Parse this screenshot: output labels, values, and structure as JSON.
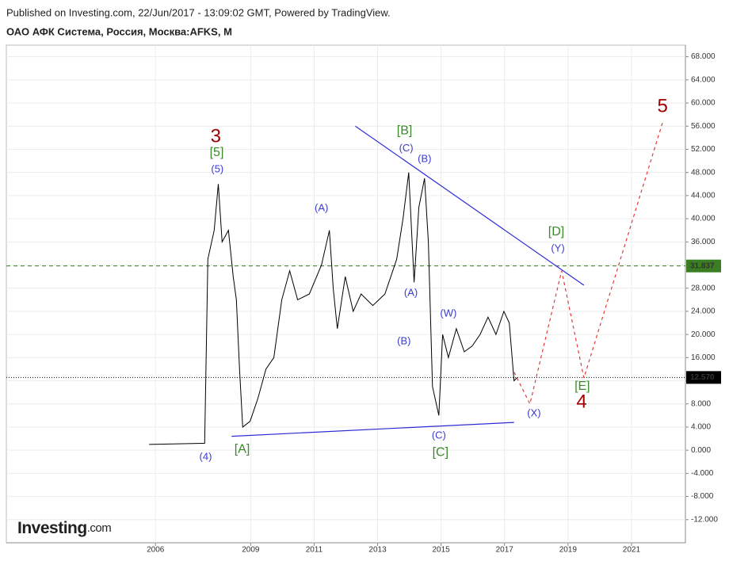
{
  "header": {
    "published": "Published on Investing.com, 22/Jun/2017 - 13:09:02 GMT, Powered by TradingView.",
    "symbol": "ОАО АФК Система, Россия, Москва:AFKS, M"
  },
  "logo": {
    "brand": "Investing",
    "suffix": ".com"
  },
  "chart_data": {
    "type": "line",
    "xlim": [
      2001.3,
      2022.7
    ],
    "ylim": [
      -16,
      70
    ],
    "xticks": [
      2006,
      2009,
      2011,
      2013,
      2015,
      2017,
      2019,
      2021
    ],
    "yticks": [
      {
        "value": -12,
        "label": "-12.000"
      },
      {
        "value": -8,
        "label": "-8.000"
      },
      {
        "value": -4,
        "label": "-4.000"
      },
      {
        "value": 0,
        "label": "0.000"
      },
      {
        "value": 4,
        "label": "4.000"
      },
      {
        "value": 8,
        "label": "8.000"
      },
      {
        "value": 12,
        "label": "12.000"
      },
      {
        "value": 16,
        "label": "16.000"
      },
      {
        "value": 20,
        "label": "20.000"
      },
      {
        "value": 24,
        "label": "24.000"
      },
      {
        "value": 28,
        "label": "28.000"
      },
      {
        "value": 32,
        "label": "32.000"
      },
      {
        "value": 36,
        "label": "36.000"
      },
      {
        "value": 40,
        "label": "40.000"
      },
      {
        "value": 44,
        "label": "44.000"
      },
      {
        "value": 48,
        "label": "48.000"
      },
      {
        "value": 52,
        "label": "52.000"
      },
      {
        "value": 56,
        "label": "56.000"
      },
      {
        "value": 60,
        "label": "60.000"
      },
      {
        "value": 64,
        "label": "64.000"
      },
      {
        "value": 68,
        "label": "68.000"
      }
    ],
    "grid": true,
    "series": [
      {
        "color": "#000000",
        "x": [
          2005.8,
          2007.55,
          2007.65,
          2007.85,
          2007.98,
          2008.1,
          2008.3,
          2008.45,
          2008.55,
          2008.65,
          2008.75,
          2008.98,
          2009.23,
          2009.48,
          2009.73,
          2009.98,
          2010.23,
          2010.48,
          2010.85,
          2011.23,
          2011.48,
          2011.6,
          2011.73,
          2011.98,
          2012.23,
          2012.48,
          2012.85,
          2013.23,
          2013.6,
          2013.8,
          2013.98,
          2014.15,
          2014.3,
          2014.48,
          2014.6,
          2014.73,
          2014.93,
          2015.05,
          2015.23,
          2015.48,
          2015.73,
          2015.98,
          2016.23,
          2016.48,
          2016.73,
          2016.98,
          2017.15,
          2017.3,
          2017.4
        ],
        "values": [
          1.0,
          1.2,
          33,
          38,
          46,
          36,
          38,
          30,
          26,
          14,
          4,
          5,
          9,
          14,
          16,
          26,
          31,
          26,
          27,
          32,
          38,
          28,
          21,
          30,
          24,
          27,
          25,
          27,
          33,
          40,
          48,
          29,
          42,
          47,
          36,
          11,
          6,
          20,
          16,
          21,
          17,
          18,
          20,
          23,
          20,
          24,
          22,
          12,
          12.57
        ]
      }
    ],
    "hlines": [
      {
        "value": 31.837,
        "label": "31.837",
        "color": "#3a7d22"
      },
      {
        "value": 12.57,
        "label": "12.570",
        "color": "#000000"
      }
    ],
    "trendlines": [
      {
        "color": "#2b2bd6",
        "x": [
          2012.3,
          2019.5
        ],
        "y": [
          56,
          28.5
        ]
      },
      {
        "color": "#2b2bd6",
        "x": [
          2008.4,
          2017.3
        ],
        "y": [
          2.4,
          4.8
        ]
      }
    ],
    "projection": {
      "color": "#e53935",
      "x": [
        2017.3,
        2017.8,
        2018.8,
        2019.5,
        2022
      ],
      "y": [
        13.5,
        8,
        31,
        12.5,
        57
      ]
    },
    "annotations": [
      {
        "text": "3",
        "x": 2007.9,
        "y": 54.1,
        "color": "#a00000"
      },
      {
        "text": "[5]",
        "x": 2007.93,
        "y": 51.4,
        "color": "#3a8a2a"
      },
      {
        "text": "(5)",
        "x": 2007.95,
        "y": 48.5,
        "color": "#3b3bd0"
      },
      {
        "text": "(4)",
        "x": 2007.58,
        "y": -1.2,
        "color": "#3b3bd0"
      },
      {
        "text": "[A]",
        "x": 2008.73,
        "y": 0.1,
        "color": "#3a8a2a"
      },
      {
        "text": "(A)",
        "x": 2011.23,
        "y": 41.8,
        "color": "#3b3bd0"
      },
      {
        "text": "[B]",
        "x": 2013.85,
        "y": 55.2,
        "color": "#3a8a2a"
      },
      {
        "text": "(C)",
        "x": 2013.9,
        "y": 52.1,
        "color": "#3b3bd0"
      },
      {
        "text": "(B)",
        "x": 2014.48,
        "y": 50.3,
        "color": "#3b3bd0"
      },
      {
        "text": "(A)",
        "x": 2014.05,
        "y": 27.1,
        "color": "#3b3bd0"
      },
      {
        "text": "(B)",
        "x": 2013.83,
        "y": 18.8,
        "color": "#3b3bd0"
      },
      {
        "text": "(W)",
        "x": 2015.23,
        "y": 23.6,
        "color": "#3b3bd0"
      },
      {
        "text": "(C)",
        "x": 2014.93,
        "y": 2.5,
        "color": "#3b3bd0"
      },
      {
        "text": "[C]",
        "x": 2014.98,
        "y": -0.4,
        "color": "#3a8a2a"
      },
      {
        "text": "[D]",
        "x": 2018.63,
        "y": 37.7,
        "color": "#3a8a2a"
      },
      {
        "text": "(Y)",
        "x": 2018.68,
        "y": 34.8,
        "color": "#3b3bd0"
      },
      {
        "text": "[E]",
        "x": 2019.45,
        "y": 11.0,
        "color": "#3a8a2a"
      },
      {
        "text": "4",
        "x": 2019.43,
        "y": 8.2,
        "color": "#a00000"
      },
      {
        "text": "(X)",
        "x": 2017.93,
        "y": 6.3,
        "color": "#3b3bd0"
      },
      {
        "text": "5",
        "x": 2021.98,
        "y": 59.3,
        "color": "#a00000"
      }
    ]
  }
}
